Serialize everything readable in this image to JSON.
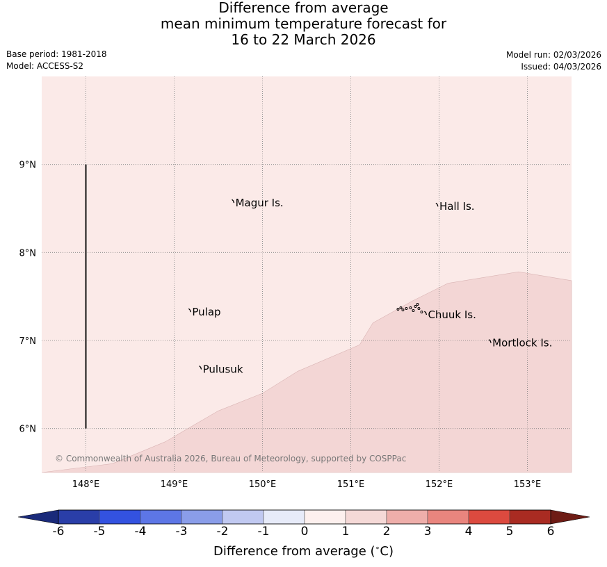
{
  "header": {
    "title_lines": [
      "Difference from average",
      "mean minimum temperature forecast for",
      "16 to 22 March 2026"
    ],
    "base_period": "Base period: 1981-2018",
    "model": "Model: ACCESS-S2",
    "model_run": "Model run: 02/03/2026",
    "issued": "Issued: 04/03/2026"
  },
  "map": {
    "lon_range": [
      147.5,
      153.5
    ],
    "lat_range": [
      5.5,
      10.0
    ],
    "lon_ticks": [
      "148°E",
      "149°E",
      "150°E",
      "151°E",
      "152°E",
      "153°E"
    ],
    "lat_ticks": [
      "9°N",
      "8°N",
      "7°N",
      "6°N"
    ],
    "colors": {
      "class_0_to_1": "#fbeae8",
      "class_1_to_2": "#f3d6d5",
      "grid": "#7f7f7f"
    },
    "anomaly_1C_contour": [
      [
        147.5,
        5.5
      ],
      [
        148.3,
        5.6
      ],
      [
        148.9,
        5.85
      ],
      [
        149.5,
        6.2
      ],
      [
        150.0,
        6.4
      ],
      [
        150.4,
        6.65
      ],
      [
        151.1,
        6.95
      ],
      [
        151.25,
        7.2
      ],
      [
        151.7,
        7.45
      ],
      [
        152.1,
        7.65
      ],
      [
        152.9,
        7.78
      ],
      [
        153.5,
        7.68
      ]
    ],
    "places": [
      {
        "name": "Magur Is.",
        "lon": 149.67,
        "lat": 8.57
      },
      {
        "name": "Hall Is.",
        "lon": 151.98,
        "lat": 8.53
      },
      {
        "name": "Pulap",
        "lon": 149.18,
        "lat": 7.33
      },
      {
        "name": "Chuuk Is.",
        "lon": 151.85,
        "lat": 7.3
      },
      {
        "name": "Mortlock Is.",
        "lon": 152.58,
        "lat": 6.98
      },
      {
        "name": "Pulusuk",
        "lon": 149.3,
        "lat": 6.68
      }
    ],
    "line_148E": {
      "lon": 148.0,
      "lat_from": 6.0,
      "lat_to": 9.0
    },
    "copyright": "© Commonwealth of Australia 2026, Bureau of Meteorology, supported by COSPPac"
  },
  "colorbar": {
    "label": "Difference from average (",
    "label_unit": "∘",
    "label_tail": "C)",
    "ticks": [
      "-6",
      "-5",
      "-4",
      "-3",
      "-2",
      "-1",
      "0",
      "1",
      "2",
      "3",
      "4",
      "5",
      "6"
    ],
    "colors": [
      "#2a3ea8",
      "#3352e0",
      "#5d76e6",
      "#8a9de9",
      "#c1c9f1",
      "#e7ebf9",
      "#fdf0ee",
      "#f5d9d7",
      "#eeaeaa",
      "#e9857e",
      "#dc4a3f",
      "#a92b22"
    ],
    "under_color": "#1a2a7a",
    "over_color": "#6e1c15"
  }
}
